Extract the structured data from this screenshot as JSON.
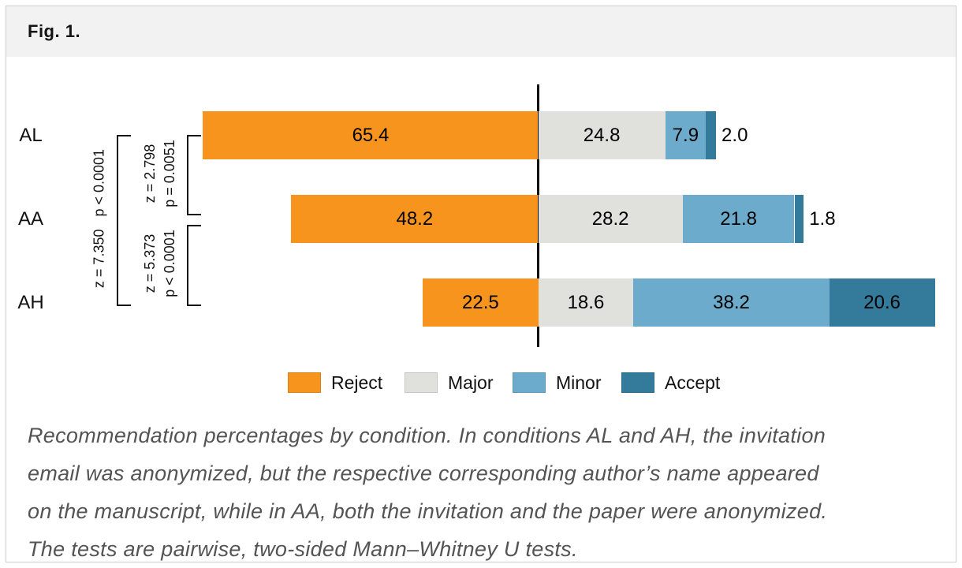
{
  "figure": {
    "label": "Fig. 1."
  },
  "caption": {
    "lines": [
      "Recommendation percentages by condition. In conditions AL and AH, the invitation",
      "email was anonymized, but the respective corresponding author’s name appeared",
      "on the manuscript, while in AA, both the invitation and the paper were anonymized.",
      "The tests are pairwise, two-sided Mann–Whitney U tests."
    ]
  },
  "colors": {
    "header_bg": "#f2f2f2",
    "card_border": "#cfcfcf",
    "divider": "#111111",
    "caption_text": "#545454"
  },
  "chart_data": {
    "type": "bar",
    "variant": "diverging-stacked-horizontal",
    "title": "",
    "xlabel": "",
    "ylabel": "",
    "categories": [
      "AL",
      "AA",
      "AH"
    ],
    "series": [
      {
        "name": "Reject",
        "color": "#F7941D",
        "values": [
          65.4,
          48.2,
          22.5
        ]
      },
      {
        "name": "Major",
        "color": "#E0E0DC",
        "values": [
          24.8,
          28.2,
          18.6
        ]
      },
      {
        "name": "Minor",
        "color": "#6CABCB",
        "values": [
          7.9,
          21.8,
          38.2
        ]
      },
      {
        "name": "Accept",
        "color": "#347A9B",
        "values": [
          2.0,
          1.8,
          20.6
        ]
      }
    ],
    "baseline_note": "vertical reference line at the Reject/Major boundary of every bar",
    "legend": {
      "position": "bottom",
      "entries": [
        "Reject",
        "Major",
        "Minor",
        "Accept"
      ]
    },
    "stats": {
      "outer": {
        "pair": "AL–AH",
        "z": "z = 7.350",
        "p": "p < 0.0001"
      },
      "upper": {
        "pair": "AL–AA",
        "z": "z = 2.798",
        "p": "p = 0.0051"
      },
      "lower": {
        "pair": "AA–AH",
        "z": "z = 5.373",
        "p": "p < 0.0001"
      }
    }
  }
}
